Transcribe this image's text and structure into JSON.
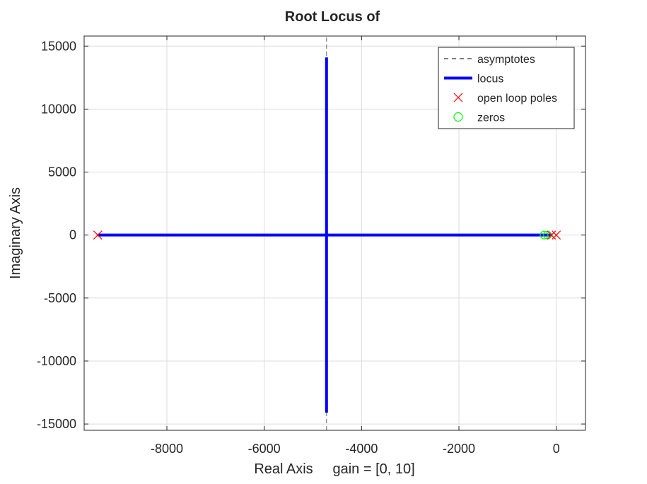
{
  "chart_data": {
    "type": "line",
    "title": "Root Locus of",
    "xlabel": "Real Axis     gain = [0, 10]",
    "ylabel": "Imaginary Axis",
    "xlim": [
      -9700,
      600
    ],
    "ylim": [
      -15500,
      15800
    ],
    "x_ticks": [
      -8000,
      -6000,
      -4000,
      -2000,
      0
    ],
    "y_ticks": [
      -15000,
      -10000,
      -5000,
      0,
      5000,
      10000,
      15000
    ],
    "grid": true,
    "legend_position": "top-right",
    "legend": [
      {
        "label": "asymptotes",
        "style": "dashed",
        "color": "#000000"
      },
      {
        "label": "locus",
        "style": "solid",
        "color": "#0000ff"
      },
      {
        "label": "open loop poles",
        "style": "x-marker",
        "color": "#ff0000"
      },
      {
        "label": "zeros",
        "style": "o-marker",
        "color": "#00ff00"
      }
    ],
    "series": [
      {
        "name": "asymptotes",
        "color": "#000000",
        "points": [
          [
            -4720,
            -15500
          ],
          [
            -4720,
            15800
          ]
        ]
      },
      {
        "name": "locus",
        "color": "#0000ff",
        "segments": [
          [
            [
              -9420,
              0
            ],
            [
              -4720,
              0
            ]
          ],
          [
            [
              -4720,
              0
            ],
            [
              -80,
              0
            ]
          ],
          [
            [
              -4720,
              0
            ],
            [
              -4720,
              14100
            ]
          ],
          [
            [
              -4720,
              0
            ],
            [
              -4720,
              -14100
            ]
          ]
        ]
      },
      {
        "name": "open loop poles",
        "color": "#ff0000",
        "points": [
          [
            -9420,
            0
          ],
          [
            -100,
            0
          ],
          [
            0,
            0
          ]
        ]
      },
      {
        "name": "zeros",
        "color": "#00ff00",
        "points": [
          [
            -250,
            0
          ],
          [
            -180,
            0
          ]
        ]
      }
    ]
  }
}
